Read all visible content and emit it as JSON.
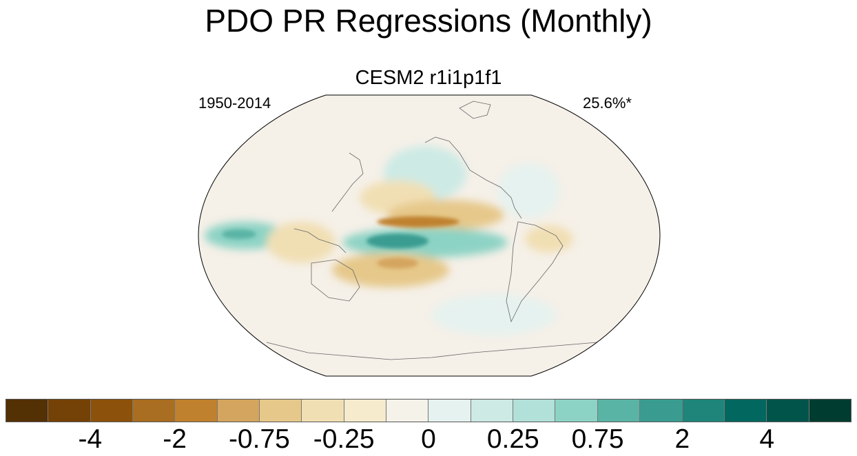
{
  "title": "PDO PR Regressions (Monthly)",
  "subtitle": "CESM2 r1i1p1f1",
  "period": "1950-2014",
  "variance_explained": "25.6%*",
  "colorbar": {
    "colors": [
      "#543005",
      "#744106",
      "#8c510a",
      "#a96e21",
      "#bf812d",
      "#d4a55e",
      "#e6c88a",
      "#f1dfb4",
      "#f6ebcd",
      "#f5f2ea",
      "#e6f2ef",
      "#cdeae5",
      "#b1e1d9",
      "#8dd3c5",
      "#5ab4a5",
      "#3a9c91",
      "#1f857a",
      "#02675f",
      "#01544a",
      "#003c30"
    ],
    "labels": [
      "-4",
      "-2",
      "-0.75",
      "-0.25",
      "0",
      "0.25",
      "0.75",
      "2",
      "4"
    ],
    "label_box_index": [
      2,
      4,
      6,
      8,
      10,
      12,
      14,
      16,
      18
    ]
  },
  "map": {
    "projection": "Robinson",
    "field": "PR regression onto PDO",
    "ocean_background": "#f5f0e8",
    "coast_color": "#666666"
  }
}
